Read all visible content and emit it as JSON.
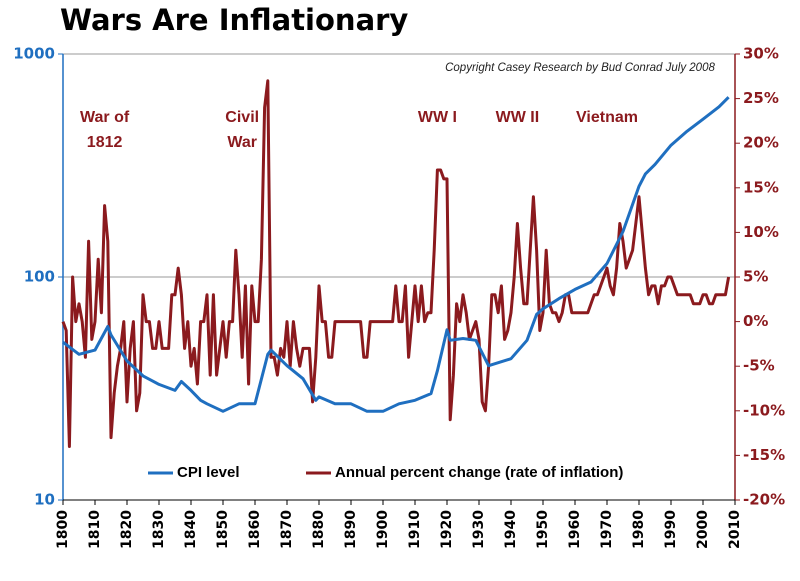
{
  "chart_data": {
    "type": "line",
    "title": "Wars Are Inflationary",
    "subtitle": "Copyright Casey Research by Bud Conrad July 2008",
    "annotations": [
      {
        "lines": [
          "War of",
          "1812"
        ],
        "x": 1813
      },
      {
        "lines": [
          "Civil",
          "War"
        ],
        "x": 1856
      },
      {
        "lines": [
          "WW I"
        ],
        "x": 1917
      },
      {
        "lines": [
          "WW II"
        ],
        "x": 1942
      },
      {
        "lines": [
          "Vietnam"
        ],
        "x": 1970
      }
    ],
    "xlim": [
      1800,
      2010
    ],
    "xticks": [
      1800,
      1810,
      1820,
      1830,
      1840,
      1850,
      1860,
      1870,
      1880,
      1890,
      1900,
      1910,
      1920,
      1930,
      1940,
      1950,
      1960,
      1970,
      1980,
      1990,
      2000,
      2010
    ],
    "ylim": [
      10,
      1000
    ],
    "yticks": [
      10,
      100,
      1000
    ],
    "log_scale": true,
    "y2lim": [
      -20,
      30
    ],
    "y2ticks": [
      {
        "value": -20,
        "label": "-20%"
      },
      {
        "value": -15,
        "label": "-15%"
      },
      {
        "value": -10,
        "label": "-10%"
      },
      {
        "value": -5,
        "label": "-5%"
      },
      {
        "value": 0,
        "label": "0%"
      },
      {
        "value": 5,
        "label": "5%"
      },
      {
        "value": 10,
        "label": "10%"
      },
      {
        "value": 15,
        "label": "15%"
      },
      {
        "value": 20,
        "label": "20%"
      },
      {
        "value": 25,
        "label": "25%"
      },
      {
        "value": 30,
        "label": "30%"
      }
    ],
    "grid": true,
    "legend": "bottom",
    "series": [
      {
        "name": "CPI level",
        "color": "#1f6fc0",
        "axis": "y",
        "x": [
          1800,
          1805,
          1810,
          1814,
          1815,
          1820,
          1825,
          1830,
          1835,
          1837,
          1840,
          1843,
          1845,
          1850,
          1855,
          1860,
          1864,
          1865,
          1870,
          1875,
          1879,
          1880,
          1885,
          1890,
          1895,
          1900,
          1905,
          1910,
          1915,
          1917,
          1920,
          1921,
          1925,
          1929,
          1933,
          1940,
          1945,
          1948,
          1950,
          1955,
          1960,
          1965,
          1970,
          1975,
          1980,
          1982,
          1985,
          1990,
          1995,
          2000,
          2005,
          2008
        ],
        "values": [
          51,
          45,
          47,
          60,
          55,
          42,
          36,
          33,
          31,
          34,
          31,
          28,
          27,
          25,
          27,
          27,
          45,
          47,
          40,
          35,
          28,
          29,
          27,
          27,
          25,
          25,
          27,
          28,
          30,
          38,
          58,
          52,
          53,
          52,
          40,
          43,
          52,
          68,
          72,
          80,
          88,
          95,
          115,
          160,
          255,
          290,
          320,
          390,
          450,
          510,
          580,
          640
        ]
      },
      {
        "name": "Annual percent change (rate of inflation)",
        "color": "#8b1a1e",
        "axis": "y2",
        "x": [
          1800,
          1801,
          1802,
          1803,
          1804,
          1805,
          1806,
          1807,
          1808,
          1809,
          1810,
          1811,
          1812,
          1813,
          1814,
          1815,
          1816,
          1817,
          1818,
          1819,
          1820,
          1821,
          1822,
          1823,
          1824,
          1825,
          1826,
          1827,
          1828,
          1829,
          1830,
          1831,
          1832,
          1833,
          1834,
          1835,
          1836,
          1837,
          1838,
          1839,
          1840,
          1841,
          1842,
          1843,
          1844,
          1845,
          1846,
          1847,
          1848,
          1849,
          1850,
          1851,
          1852,
          1853,
          1854,
          1855,
          1856,
          1857,
          1858,
          1859,
          1860,
          1861,
          1862,
          1863,
          1864,
          1865,
          1866,
          1867,
          1868,
          1869,
          1870,
          1871,
          1872,
          1873,
          1874,
          1875,
          1876,
          1877,
          1878,
          1879,
          1880,
          1881,
          1882,
          1883,
          1884,
          1885,
          1886,
          1887,
          1888,
          1889,
          1890,
          1891,
          1892,
          1893,
          1894,
          1895,
          1896,
          1897,
          1898,
          1899,
          1900,
          1901,
          1902,
          1903,
          1904,
          1905,
          1906,
          1907,
          1908,
          1909,
          1910,
          1911,
          1912,
          1913,
          1914,
          1915,
          1916,
          1917,
          1918,
          1919,
          1920,
          1921,
          1922,
          1923,
          1924,
          1925,
          1926,
          1927,
          1928,
          1929,
          1930,
          1931,
          1932,
          1933,
          1934,
          1935,
          1936,
          1937,
          1938,
          1939,
          1940,
          1941,
          1942,
          1943,
          1944,
          1945,
          1946,
          1947,
          1948,
          1949,
          1950,
          1951,
          1952,
          1953,
          1954,
          1955,
          1956,
          1957,
          1958,
          1959,
          1960,
          1961,
          1962,
          1963,
          1964,
          1965,
          1966,
          1967,
          1968,
          1969,
          1970,
          1971,
          1972,
          1973,
          1974,
          1975,
          1976,
          1977,
          1978,
          1979,
          1980,
          1981,
          1982,
          1983,
          1984,
          1985,
          1986,
          1987,
          1988,
          1989,
          1990,
          1991,
          1992,
          1993,
          1994,
          1995,
          1996,
          1997,
          1998,
          1999,
          2000,
          2001,
          2002,
          2003,
          2004,
          2005,
          2006,
          2007,
          2008
        ],
        "values": [
          0,
          -1,
          -14,
          5,
          0,
          2,
          0,
          -4,
          9,
          -2,
          0,
          7,
          1,
          13,
          9,
          -13,
          -8,
          -5,
          -3,
          0,
          -9,
          -3,
          0,
          -10,
          -8,
          3,
          0,
          0,
          -3,
          -3,
          0,
          -3,
          -3,
          -3,
          3,
          3,
          6,
          3,
          -3,
          0,
          -5,
          -3,
          -7,
          0,
          0,
          3,
          -6,
          3,
          -6,
          -3,
          0,
          -4,
          0,
          0,
          8,
          3,
          -4,
          4,
          -7,
          4,
          0,
          0,
          7,
          24,
          27,
          -4,
          -4,
          -6,
          -3,
          -4,
          0,
          -5,
          0,
          -3,
          -5,
          -3,
          -3,
          -3,
          -9,
          -4,
          4,
          0,
          0,
          -4,
          -4,
          0,
          0,
          0,
          0,
          0,
          0,
          0,
          0,
          0,
          -4,
          -4,
          0,
          0,
          0,
          0,
          0,
          0,
          0,
          0,
          4,
          0,
          0,
          4,
          -4,
          0,
          4,
          0,
          4,
          0,
          1,
          1,
          8,
          17,
          17,
          16,
          16,
          -11,
          -6,
          2,
          0,
          3,
          1,
          -2,
          -1,
          0,
          -2,
          -9,
          -10,
          -5,
          3,
          3,
          1,
          4,
          -2,
          -1,
          1,
          5,
          11,
          6,
          2,
          2,
          8,
          14,
          8,
          -1,
          1,
          8,
          2,
          1,
          1,
          0,
          1,
          3,
          3,
          1,
          1,
          1,
          1,
          1,
          1,
          2,
          3,
          3,
          4,
          5,
          6,
          4,
          3,
          6,
          11,
          9,
          6,
          7,
          8,
          11,
          14,
          10,
          6,
          3,
          4,
          4,
          2,
          4,
          4,
          5,
          5,
          4,
          3,
          3,
          3,
          3,
          3,
          2,
          2,
          2,
          3,
          3,
          2,
          2,
          3,
          3,
          3,
          3,
          5
        ]
      }
    ]
  }
}
